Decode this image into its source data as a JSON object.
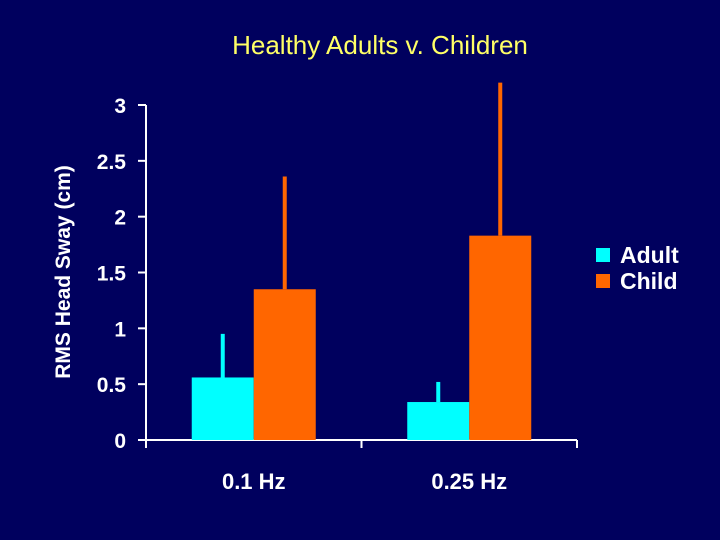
{
  "chart_data": {
    "type": "bar",
    "title": "Healthy Adults v. Children",
    "ylabel": "RMS Head Sway (cm)",
    "xlabel": "",
    "categories": [
      "0.1 Hz",
      "0.25 Hz"
    ],
    "ylim": [
      0,
      3
    ],
    "yticks": [
      "0",
      "0.5",
      "1",
      "1.5",
      "2",
      "2.5",
      "3"
    ],
    "grid": false,
    "legend_position": "right",
    "series": [
      {
        "name": "Adult",
        "color": "#00ffff",
        "values": [
          0.56,
          0.34
        ],
        "error_upper": [
          0.95,
          0.52
        ]
      },
      {
        "name": "Child",
        "color": "#ff6600",
        "values": [
          1.35,
          1.83
        ],
        "error_upper": [
          2.36,
          3.2
        ]
      }
    ]
  }
}
